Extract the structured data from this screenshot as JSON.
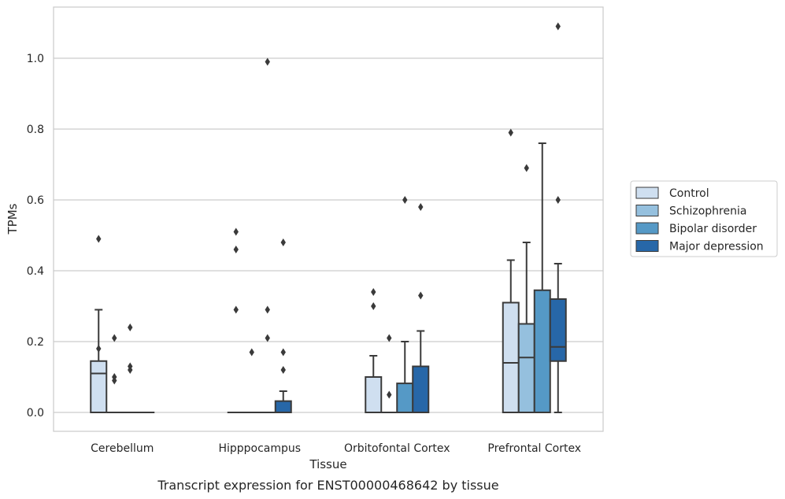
{
  "chart_data": {
    "type": "box",
    "xlabel": "Tissue",
    "ylabel": "TPMs",
    "caption": "Transcript expression for ENST00000468642 by tissue",
    "ylim": [
      -0.05,
      1.15
    ],
    "yticks": [
      0.0,
      0.2,
      0.4,
      0.6,
      0.8,
      1.0
    ],
    "ytick_labels": [
      "0.0",
      "0.2",
      "0.4",
      "0.6",
      "0.8",
      "1.0"
    ],
    "grid": "horizontal",
    "legend_position": "right",
    "categories": [
      "Cerebellum",
      "Hipppocampus",
      "Orbitofontal Cortex",
      "Prefrontal Cortex"
    ],
    "series": [
      {
        "name": "Control",
        "color": "#cfdff0",
        "boxes": [
          {
            "q1": 0.0,
            "median": 0.11,
            "q3": 0.145,
            "whisker_low": 0.0,
            "whisker_high": 0.29,
            "outliers": [
              0.49,
              0.18
            ]
          },
          {
            "q1": 0.0,
            "median": 0.0,
            "q3": 0.0,
            "whisker_low": 0.0,
            "whisker_high": 0.0,
            "outliers": [
              0.51,
              0.46,
              0.29
            ]
          },
          {
            "q1": 0.0,
            "median": 0.0,
            "q3": 0.1,
            "whisker_low": 0.0,
            "whisker_high": 0.16,
            "outliers": [
              0.34,
              0.3
            ]
          },
          {
            "q1": 0.0,
            "median": 0.14,
            "q3": 0.31,
            "whisker_low": 0.0,
            "whisker_high": 0.43,
            "outliers": [
              0.79
            ]
          }
        ]
      },
      {
        "name": "Schizophrenia",
        "color": "#95c0de",
        "boxes": [
          {
            "q1": 0.0,
            "median": 0.0,
            "q3": 0.0,
            "whisker_low": 0.0,
            "whisker_high": 0.0,
            "outliers": [
              0.21,
              0.1,
              0.09
            ]
          },
          {
            "q1": 0.0,
            "median": 0.0,
            "q3": 0.0,
            "whisker_low": 0.0,
            "whisker_high": 0.0,
            "outliers": [
              0.17
            ]
          },
          {
            "q1": 0.0,
            "median": 0.0,
            "q3": 0.0,
            "whisker_low": 0.0,
            "whisker_high": 0.0,
            "outliers": [
              0.21,
              0.05
            ]
          },
          {
            "q1": 0.0,
            "median": 0.155,
            "q3": 0.25,
            "whisker_low": 0.0,
            "whisker_high": 0.48,
            "outliers": [
              0.69
            ]
          }
        ]
      },
      {
        "name": "Bipolar disorder",
        "color": "#5599c6",
        "boxes": [
          {
            "q1": 0.0,
            "median": 0.0,
            "q3": 0.0,
            "whisker_low": 0.0,
            "whisker_high": 0.0,
            "outliers": [
              0.24,
              0.13,
              0.12
            ]
          },
          {
            "q1": 0.0,
            "median": 0.0,
            "q3": 0.0,
            "whisker_low": 0.0,
            "whisker_high": 0.0,
            "outliers": [
              0.99,
              0.29,
              0.21
            ]
          },
          {
            "q1": 0.0,
            "median": 0.0,
            "q3": 0.082,
            "whisker_low": 0.0,
            "whisker_high": 0.2,
            "outliers": [
              0.6
            ]
          },
          {
            "q1": 0.0,
            "median": 0.0,
            "q3": 0.345,
            "whisker_low": 0.0,
            "whisker_high": 0.76,
            "outliers": []
          }
        ]
      },
      {
        "name": "Major depression",
        "color": "#2767a8",
        "boxes": [
          {
            "q1": 0.0,
            "median": 0.0,
            "q3": 0.0,
            "whisker_low": 0.0,
            "whisker_high": 0.0,
            "outliers": []
          },
          {
            "q1": 0.0,
            "median": 0.0,
            "q3": 0.032,
            "whisker_low": 0.0,
            "whisker_high": 0.06,
            "outliers": [
              0.48,
              0.17,
              0.12
            ]
          },
          {
            "q1": 0.0,
            "median": 0.0,
            "q3": 0.13,
            "whisker_low": 0.0,
            "whisker_high": 0.23,
            "outliers": [
              0.58,
              0.33
            ]
          },
          {
            "q1": 0.145,
            "median": 0.185,
            "q3": 0.32,
            "whisker_low": 0.0,
            "whisker_high": 0.42,
            "outliers": [
              1.09,
              0.6
            ]
          }
        ]
      }
    ]
  }
}
